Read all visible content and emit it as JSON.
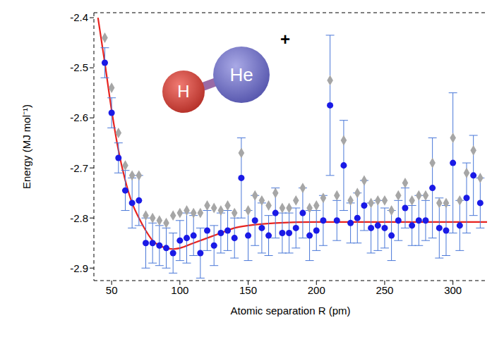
{
  "chart_data": {
    "type": "scatter",
    "x_label": "Atomic separation R (pm)",
    "y_label": "Energy (MJ mol⁻¹)",
    "xlim": [
      37,
      325
    ],
    "xticks": [
      50,
      100,
      150,
      200,
      250,
      300
    ],
    "ylim": [
      -2.925,
      -2.39
    ],
    "yticks": [
      -2.9,
      -2.8,
      -2.7,
      -2.6,
      -2.5,
      -2.4
    ],
    "grid": false,
    "annotations": [
      {
        "text": "H"
      },
      {
        "text": "He"
      },
      {
        "text": "+"
      }
    ],
    "series": [
      {
        "type": "scatter",
        "marker": "diamond",
        "color": "#a6a6a6",
        "x": [
          45,
          50,
          55,
          60,
          65,
          70,
          75,
          80,
          85,
          90,
          95,
          100,
          105,
          110,
          115,
          120,
          125,
          130,
          135,
          140,
          145,
          150,
          155,
          160,
          165,
          170,
          175,
          180,
          185,
          190,
          195,
          200,
          205,
          210,
          215,
          220,
          225,
          230,
          235,
          240,
          245,
          250,
          255,
          260,
          265,
          270,
          275,
          280,
          285,
          290,
          295,
          300,
          305,
          310,
          315,
          320
        ],
        "values": [
          -2.44,
          -2.54,
          -2.63,
          -2.695,
          -2.715,
          -2.715,
          -2.795,
          -2.8,
          -2.805,
          -2.81,
          -2.795,
          -2.79,
          -2.785,
          -2.79,
          -2.79,
          -2.775,
          -2.78,
          -2.785,
          -2.775,
          -2.79,
          -2.67,
          -2.785,
          -2.755,
          -2.765,
          -2.775,
          -2.75,
          -2.78,
          -2.78,
          -2.765,
          -2.74,
          -2.78,
          -2.775,
          -2.76,
          -2.525,
          -2.755,
          -2.645,
          -2.765,
          -2.75,
          -2.725,
          -2.77,
          -2.765,
          -2.765,
          -2.785,
          -2.755,
          -2.73,
          -2.765,
          -2.755,
          -2.755,
          -2.69,
          -2.77,
          -2.77,
          -2.64,
          -2.765,
          -2.71,
          -2.665,
          -2.72
        ]
      },
      {
        "type": "line",
        "color": "#e8231f",
        "x": [
          40,
          45,
          50,
          55,
          60,
          65,
          70,
          75,
          80,
          85,
          90,
          95,
          100,
          110,
          120,
          130,
          140,
          150,
          170,
          200,
          250,
          300,
          325
        ],
        "values": [
          -2.4,
          -2.49,
          -2.585,
          -2.665,
          -2.725,
          -2.77,
          -2.8,
          -2.825,
          -2.845,
          -2.855,
          -2.86,
          -2.862,
          -2.86,
          -2.85,
          -2.84,
          -2.83,
          -2.82,
          -2.815,
          -2.81,
          -2.808,
          -2.808,
          -2.808,
          -2.808
        ]
      },
      {
        "type": "scatter",
        "marker": "circle",
        "color": "#1a1ae6",
        "x": [
          45,
          50,
          55,
          60,
          65,
          70,
          75,
          80,
          85,
          90,
          95,
          100,
          105,
          110,
          115,
          120,
          125,
          130,
          135,
          140,
          145,
          150,
          155,
          160,
          165,
          170,
          175,
          180,
          185,
          190,
          195,
          200,
          205,
          210,
          215,
          220,
          225,
          230,
          235,
          240,
          245,
          250,
          255,
          260,
          265,
          270,
          275,
          280,
          285,
          290,
          295,
          300,
          305,
          310,
          315,
          320
        ],
        "values": [
          -2.49,
          -2.59,
          -2.68,
          -2.745,
          -2.77,
          -2.765,
          -2.85,
          -2.85,
          -2.855,
          -2.86,
          -2.87,
          -2.845,
          -2.84,
          -2.835,
          -2.87,
          -2.825,
          -2.855,
          -2.83,
          -2.825,
          -2.84,
          -2.72,
          -2.835,
          -2.805,
          -2.82,
          -2.835,
          -2.79,
          -2.83,
          -2.83,
          -2.82,
          -2.79,
          -2.835,
          -2.825,
          -2.805,
          -2.575,
          -2.805,
          -2.695,
          -2.81,
          -2.8,
          -2.775,
          -2.82,
          -2.815,
          -2.82,
          -2.835,
          -2.805,
          -2.78,
          -2.815,
          -2.805,
          -2.805,
          -2.74,
          -2.82,
          -2.825,
          -2.69,
          -2.815,
          -2.76,
          -2.715,
          -2.77
        ],
        "errors": [
          0.03,
          0.03,
          0.03,
          0.04,
          0.05,
          0.05,
          0.05,
          0.04,
          0.04,
          0.04,
          0.04,
          0.04,
          0.05,
          0.04,
          0.05,
          0.04,
          0.04,
          0.04,
          0.04,
          0.04,
          0.08,
          0.05,
          0.05,
          0.05,
          0.04,
          0.05,
          0.04,
          0.04,
          0.04,
          0.05,
          0.05,
          0.04,
          0.05,
          0.14,
          0.04,
          0.09,
          0.04,
          0.05,
          0.05,
          0.05,
          0.05,
          0.04,
          0.05,
          0.04,
          0.04,
          0.04,
          0.05,
          0.04,
          0.1,
          0.06,
          0.05,
          0.14,
          0.05,
          0.07,
          0.08,
          0.05
        ]
      }
    ]
  }
}
